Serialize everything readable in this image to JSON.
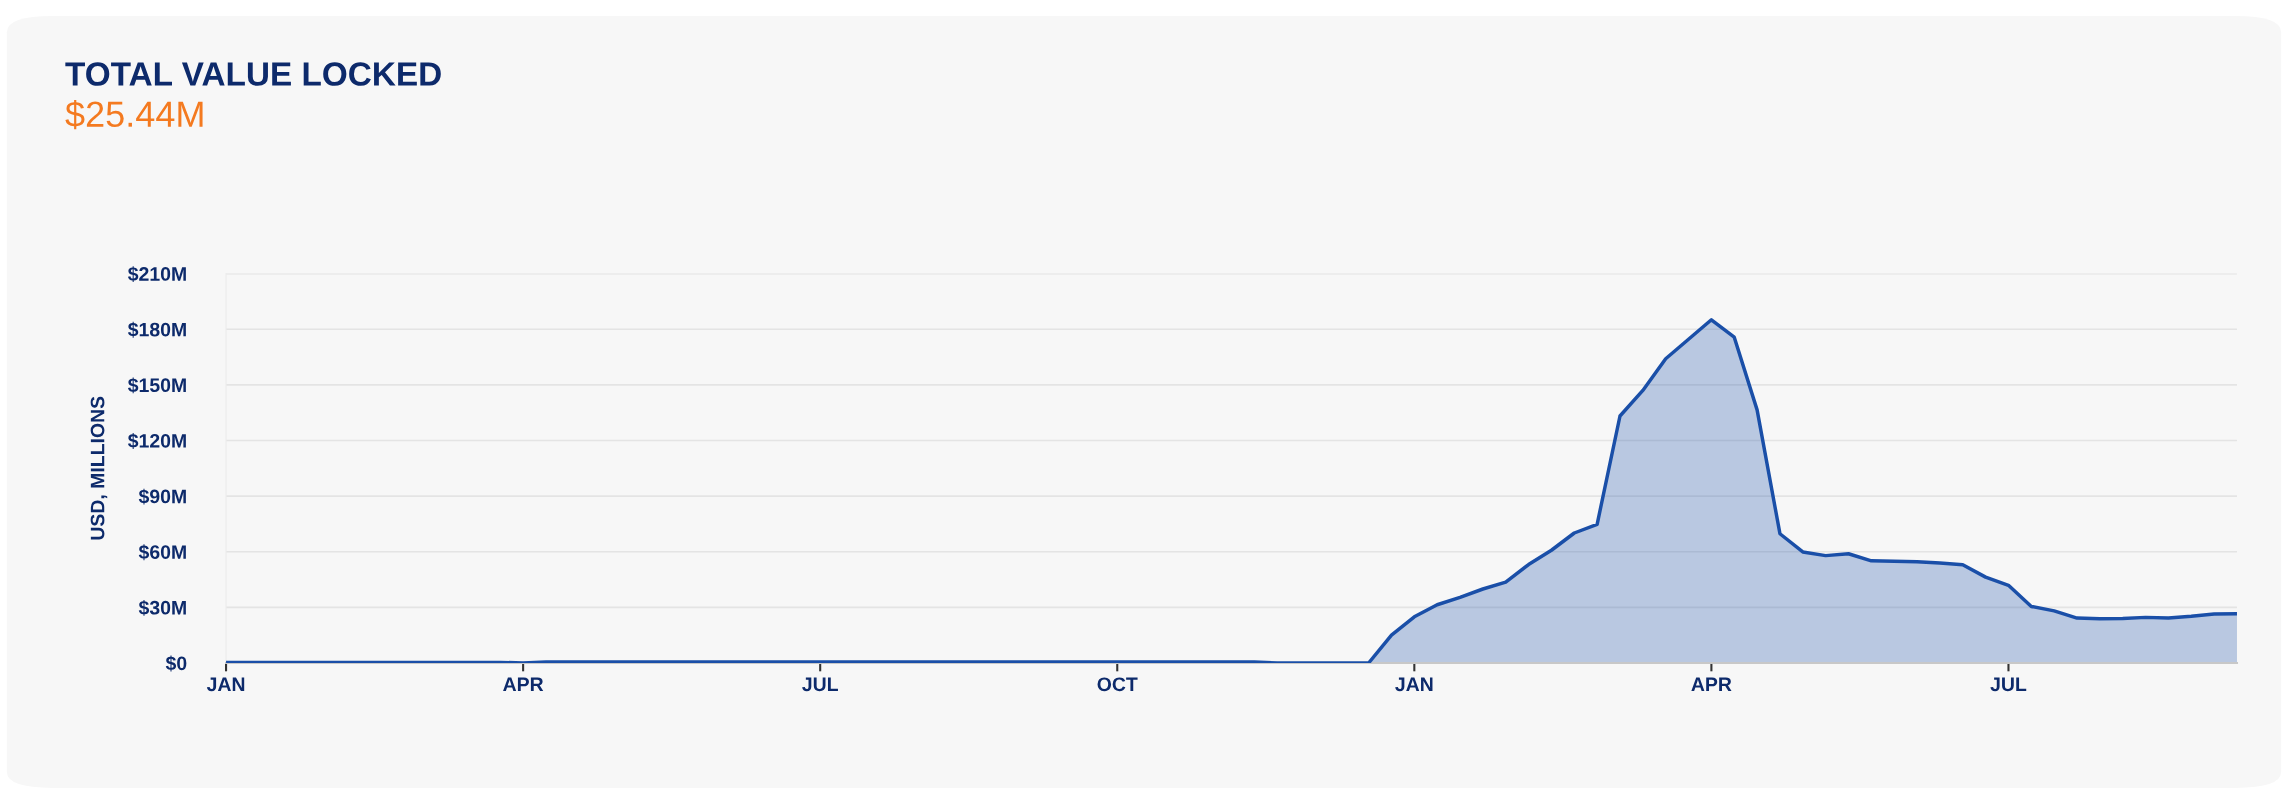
{
  "chart_data": {
    "type": "area",
    "title": "TOTAL VALUE LOCKED",
    "subtitle": "$25.44M",
    "ylabel": "USD, MILLIONS",
    "categories": [
      "JAN",
      null,
      null,
      null,
      null,
      null,
      null,
      null,
      null,
      null,
      null,
      null,
      null,
      "APR",
      null,
      null,
      null,
      null,
      null,
      null,
      null,
      null,
      null,
      null,
      null,
      null,
      "JUL",
      null,
      null,
      null,
      null,
      null,
      null,
      null,
      null,
      null,
      null,
      null,
      null,
      "OCT",
      null,
      null,
      null,
      null,
      null,
      null,
      null,
      null,
      null,
      null,
      null,
      null,
      "JAN",
      null,
      null,
      null,
      null,
      null,
      null,
      null,
      null,
      null,
      null,
      null,
      null,
      "APR",
      null,
      null,
      null,
      null,
      null,
      null,
      null,
      null,
      null,
      null,
      null,
      null,
      "JUL",
      null,
      null,
      null,
      null,
      null,
      null,
      null,
      null,
      null,
      null
    ],
    "series": [
      {
        "color": "#1a4fa8",
        "values": [
          0.3,
          0.3,
          0.3,
          0.3,
          0.3,
          0.3,
          0.3,
          0.3,
          0.3,
          0.3,
          0.3,
          0.3,
          0.3,
          0,
          0.6,
          0.6,
          0.6,
          0.6,
          0.6,
          0.6,
          0.6,
          0.6,
          0.6,
          0.6,
          0.6,
          0.6,
          0.6,
          0.6,
          0.6,
          0.6,
          0.6,
          0.6,
          0.6,
          0.6,
          0.6,
          0.6,
          0.6,
          0.6,
          0.6,
          0.6,
          0.6,
          0.6,
          0.6,
          0.6,
          0.6,
          0.6,
          0,
          0,
          0,
          0,
          0,
          15,
          24.9,
          31.4,
          35.4,
          39.9,
          43.6,
          53.1,
          60.8,
          70.1,
          74.8,
          133.2,
          147,
          164.1,
          174.6,
          185.1,
          175.7,
          136.5,
          69.7,
          59.9,
          57.9,
          58.9,
          55.1,
          54.9,
          54.6,
          53.9,
          53,
          46.3,
          41.9,
          30.5,
          28.1,
          24.2,
          23.8,
          24,
          24.6,
          24.3,
          25.2,
          26.4,
          26.6
        ]
      }
    ],
    "ylim": [
      0,
      210
    ],
    "yticks": [
      {
        "value": 0,
        "label": "$0"
      },
      {
        "value": 30,
        "label": "$30M"
      },
      {
        "value": 60,
        "label": "$60M"
      },
      {
        "value": 90,
        "label": "$90M"
      },
      {
        "value": 120,
        "label": "$120M"
      },
      {
        "value": 150,
        "label": "$150M"
      },
      {
        "value": 180,
        "label": "$180M"
      },
      {
        "value": 210,
        "label": "$210M"
      }
    ],
    "grid": "y"
  }
}
